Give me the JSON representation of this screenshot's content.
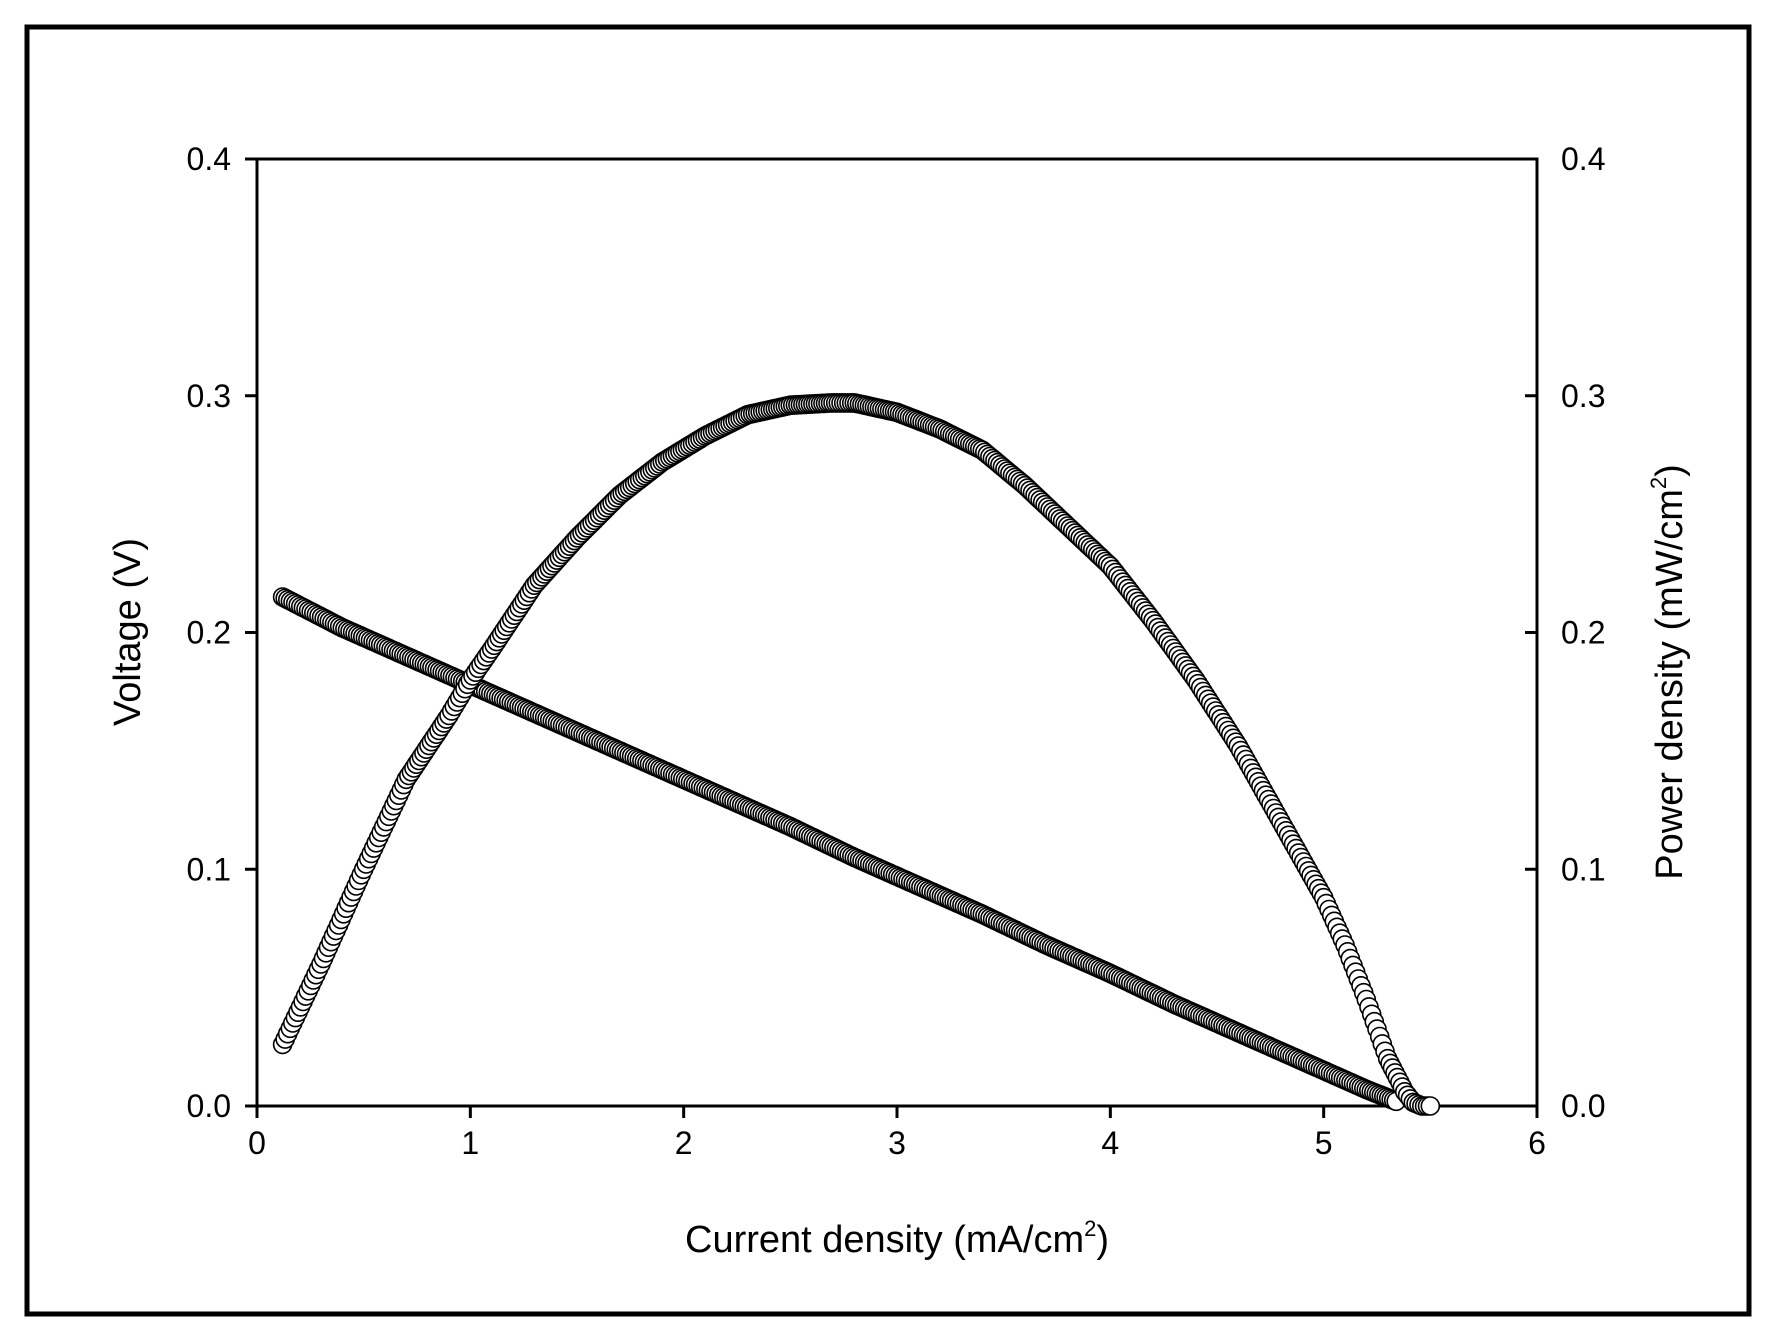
{
  "chart_data": {
    "type": "scatter",
    "title": "",
    "xlabel": "Current density (mA/cm",
    "xlabel_sup": "2",
    "xlabel_tail": ")",
    "ylabel": "Voltage (V)",
    "y2label": "Power density (mW/cm",
    "y2label_sup": "2",
    "y2label_tail": ")",
    "xlim": [
      0,
      6
    ],
    "ylim": [
      0,
      0.4
    ],
    "y2lim": [
      0,
      0.4
    ],
    "xticks": [
      "0",
      "1",
      "2",
      "3",
      "4",
      "5",
      "6"
    ],
    "yticks": [
      "0.0",
      "0.1",
      "0.2",
      "0.3",
      "0.4"
    ],
    "y2ticks": [
      "0.0",
      "0.1",
      "0.2",
      "0.3",
      "0.4"
    ],
    "grid": false,
    "legend": "none",
    "marker": "open-circle",
    "series": [
      {
        "axis": "left",
        "x": [
          0.12,
          0.4,
          0.7,
          1.0,
          1.3,
          1.6,
          1.9,
          2.2,
          2.5,
          2.8,
          3.1,
          3.4,
          3.7,
          4.0,
          4.3,
          4.6,
          4.9,
          5.2,
          5.34
        ],
        "y": [
          0.215,
          0.202,
          0.19,
          0.178,
          0.166,
          0.154,
          0.142,
          0.13,
          0.118,
          0.105,
          0.093,
          0.081,
          0.068,
          0.056,
          0.043,
          0.031,
          0.019,
          0.007,
          0.002
        ]
      },
      {
        "axis": "right",
        "x": [
          0.12,
          0.3,
          0.5,
          0.7,
          0.9,
          1.0,
          1.1,
          1.3,
          1.5,
          1.7,
          1.9,
          2.1,
          2.3,
          2.5,
          2.7,
          2.8,
          3.0,
          3.2,
          3.4,
          3.6,
          3.8,
          4.0,
          4.2,
          4.4,
          4.6,
          4.8,
          5.0,
          5.1,
          5.2,
          5.3,
          5.38,
          5.42,
          5.46,
          5.5
        ],
        "y": [
          0.026,
          0.06,
          0.1,
          0.138,
          0.165,
          0.18,
          0.193,
          0.22,
          0.24,
          0.258,
          0.272,
          0.283,
          0.292,
          0.296,
          0.297,
          0.297,
          0.293,
          0.286,
          0.277,
          0.262,
          0.245,
          0.228,
          0.205,
          0.18,
          0.152,
          0.12,
          0.088,
          0.068,
          0.045,
          0.02,
          0.006,
          0.0015,
          0.0,
          0.0
        ]
      }
    ]
  }
}
